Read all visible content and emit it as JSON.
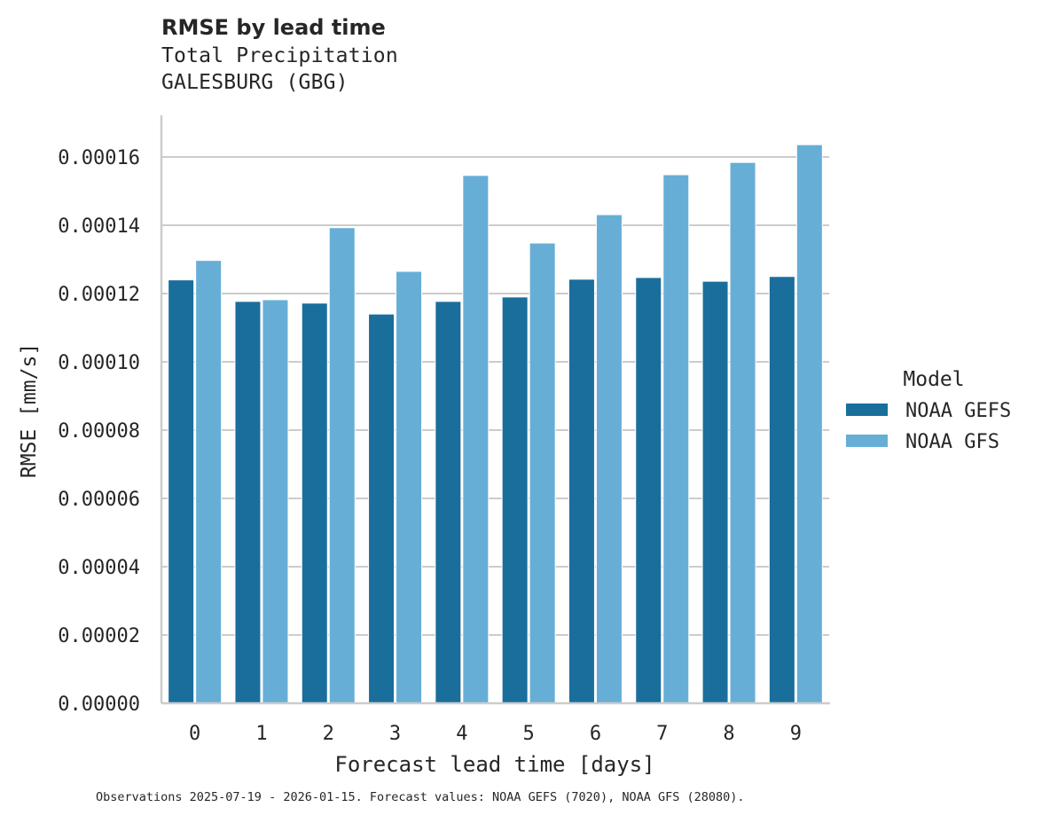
{
  "title": "RMSE by lead time",
  "subtitle_line1": "Total Precipitation",
  "subtitle_line2": "GALESBURG (GBG)",
  "footnote": "Observations 2025-07-19 - 2026-01-15. Forecast values: NOAA GEFS (7020), NOAA GFS (28080).",
  "colors": {
    "NOAA GEFS": "#1a6e9c",
    "NOAA GFS": "#67aed6",
    "grid": "#cccccc",
    "axis": "#cccccc"
  },
  "chart_data": {
    "type": "bar",
    "title": "RMSE by lead time",
    "subtitle": "Total Precipitation — GALESBURG (GBG)",
    "xlabel": "Forecast lead time [days]",
    "ylabel": "RMSE [mm/s]",
    "categories": [
      "0",
      "1",
      "2",
      "3",
      "4",
      "5",
      "6",
      "7",
      "8",
      "9"
    ],
    "series": [
      {
        "name": "NOAA GEFS",
        "color": "#1a6e9c",
        "values": [
          0.000124,
          0.0001177,
          0.0001172,
          0.000114,
          0.0001177,
          0.000119,
          0.0001242,
          0.0001247,
          0.0001236,
          0.000125
        ]
      },
      {
        "name": "NOAA GFS",
        "color": "#67aed6",
        "values": [
          0.0001297,
          0.0001182,
          0.0001393,
          0.0001265,
          0.0001546,
          0.0001348,
          0.0001431,
          0.0001548,
          0.0001584,
          0.0001636
        ]
      }
    ],
    "yticks": [
      "0.00000",
      "0.00002",
      "0.00004",
      "0.00006",
      "0.00008",
      "0.00010",
      "0.00012",
      "0.00014",
      "0.00016"
    ],
    "ylim": [
      0,
      0.000172
    ],
    "grid": true,
    "legend": {
      "title": "Model",
      "position": "right",
      "entries": [
        "NOAA GEFS",
        "NOAA GFS"
      ]
    }
  }
}
